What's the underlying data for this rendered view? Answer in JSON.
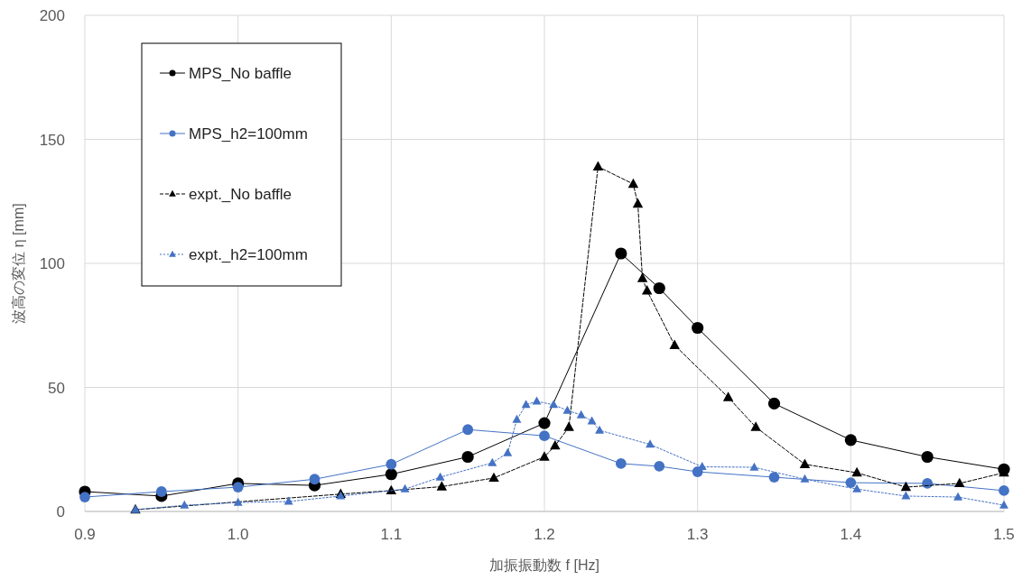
{
  "chart_data": {
    "type": "line",
    "xlabel": "加振振動数 f [Hz]",
    "ylabel": "波高の変位 η [mm]",
    "xlim": [
      0.9,
      1.5
    ],
    "xticks": [
      {
        "value": 0.9,
        "label": "0.9"
      },
      {
        "value": 1.0,
        "label": "1.0"
      },
      {
        "value": 1.1,
        "label": "1.1"
      },
      {
        "value": 1.2,
        "label": "1.2"
      },
      {
        "value": 1.3,
        "label": "1.3"
      },
      {
        "value": 1.4,
        "label": "1.4"
      },
      {
        "value": 1.5,
        "label": "1.5"
      }
    ],
    "ylim": [
      0,
      200
    ],
    "yticks": [
      0,
      50,
      100,
      150,
      200
    ],
    "grid": true,
    "legend": "top left",
    "series": [
      {
        "name": "MPS_No baffle",
        "color": "#000000",
        "marker": "circle",
        "line_style": "solid",
        "x": [
          0.9,
          0.95,
          1.0,
          1.05,
          1.1,
          1.15,
          1.2,
          1.25,
          1.275,
          1.3,
          1.35,
          1.4,
          1.45,
          1.5
        ],
        "values": [
          8,
          6.2,
          11.3,
          10.5,
          15,
          22,
          35.6,
          104,
          90,
          74,
          43.5,
          28.8,
          22,
          17
        ]
      },
      {
        "name": "MPS_h2=100mm",
        "color": "#4472c4",
        "marker": "circle",
        "line_style": "solid",
        "x": [
          0.9,
          0.95,
          1.0,
          1.05,
          1.1,
          1.15,
          1.2,
          1.25,
          1.275,
          1.3,
          1.35,
          1.4,
          1.45,
          1.5
        ],
        "values": [
          5.8,
          8,
          9.8,
          13,
          19,
          33,
          30.5,
          19.3,
          18.2,
          16,
          13.8,
          11.6,
          11.3,
          8.4
        ]
      },
      {
        "name": "expt._No baffle",
        "color": "#000000",
        "marker": "triangle",
        "line_style": "dashed",
        "x": [
          0.933,
          1.067,
          1.1,
          1.133,
          1.167,
          1.2,
          1.207,
          1.216,
          1.235,
          1.258,
          1.261,
          1.264,
          1.267,
          1.285,
          1.32,
          1.338,
          1.37,
          1.404,
          1.436,
          1.471,
          1.5
        ],
        "values": [
          0.7,
          7,
          8.4,
          10,
          13.5,
          22,
          26.5,
          34,
          139,
          132,
          124,
          94,
          89,
          67,
          46,
          34,
          19,
          15.6,
          9.8,
          11.3,
          15.6
        ]
      },
      {
        "name": "expt._h2=100mm",
        "color": "#4472c4",
        "marker": "triangle",
        "line_style": "dotted",
        "x": [
          0.933,
          0.965,
          1.0,
          1.033,
          1.067,
          1.109,
          1.132,
          1.166,
          1.176,
          1.182,
          1.188,
          1.195,
          1.206,
          1.215,
          1.224,
          1.231,
          1.236,
          1.269,
          1.303,
          1.337,
          1.37,
          1.404,
          1.436,
          1.47,
          1.5
        ],
        "values": [
          0.7,
          2.5,
          3.6,
          4,
          6.2,
          9,
          13.8,
          19.6,
          23.6,
          37,
          43,
          44.4,
          43,
          40.7,
          38.9,
          36.4,
          32.7,
          27,
          18,
          17.8,
          13,
          9,
          6.2,
          5.8,
          2.5
        ]
      }
    ]
  }
}
